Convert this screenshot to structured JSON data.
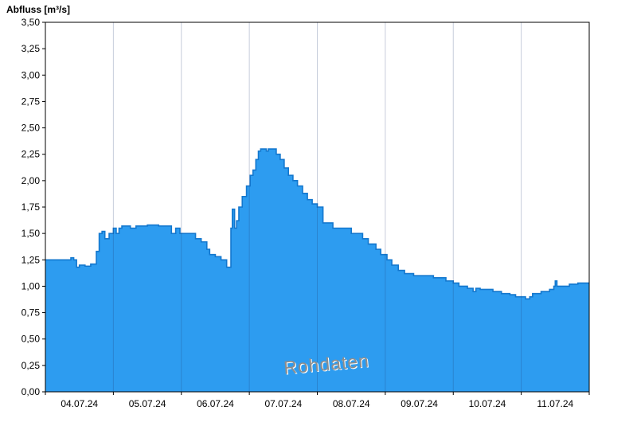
{
  "chart_data": {
    "type": "area",
    "title": "Abfluss [m³/s]",
    "watermark": "Rohdaten",
    "xlabel": "",
    "ylabel": "Abfluss [m³/s]",
    "ylim": [
      0,
      3.5
    ],
    "x_range_hours": [
      0,
      192
    ],
    "grid_hours": [
      24,
      48,
      72,
      96,
      120,
      144,
      168
    ],
    "x_labels": [
      "04.07.24",
      "05.07.24",
      "06.07.24",
      "07.07.24",
      "08.07.24",
      "09.07.24",
      "10.07.24",
      "11.07.24"
    ],
    "y_ticks": [
      "0,00",
      "0,25",
      "0,50",
      "0,75",
      "1,00",
      "1,25",
      "1,50",
      "1,75",
      "2,00",
      "2,25",
      "2,50",
      "2,75",
      "3,00",
      "3,25",
      "3,50"
    ],
    "grid_on": true,
    "legend": "none",
    "fill_color": "#2D9CF0",
    "line_color": "#1377CE",
    "grid_color": "rgba(30,60,110,0.25)",
    "axis_color": "#000000",
    "series": [
      {
        "name": "Rohdaten",
        "step_hours": [
          0,
          9,
          10,
          11,
          12,
          14,
          16,
          18,
          19,
          20,
          21,
          22.5,
          24,
          25,
          26,
          27,
          30,
          32,
          36,
          40,
          44.5,
          46,
          47.5,
          53,
          55,
          57,
          58,
          60,
          62,
          64,
          65.5,
          66,
          66.8,
          67.5,
          68.3,
          69.5,
          71,
          72.3,
          73.3,
          74.3,
          75.2,
          76,
          78,
          78.7,
          81.5,
          82.9,
          84.3,
          85.8,
          87.4,
          89,
          90.8,
          92.5,
          94.2,
          96,
          98,
          101.5,
          108,
          112,
          114,
          116.7,
          118.4,
          120.6,
          122.3,
          124.6,
          126.8,
          130,
          137,
          141.4,
          144,
          146,
          149,
          151,
          152,
          153.5,
          158,
          161,
          164,
          166,
          168,
          169.5,
          171,
          172,
          175,
          178,
          179.5,
          180,
          180.6,
          185,
          188
        ],
        "values": [
          1.25,
          1.27,
          1.25,
          1.18,
          1.2,
          1.19,
          1.21,
          1.33,
          1.5,
          1.52,
          1.45,
          1.5,
          1.55,
          1.5,
          1.55,
          1.57,
          1.55,
          1.57,
          1.58,
          1.57,
          1.5,
          1.55,
          1.5,
          1.45,
          1.42,
          1.35,
          1.3,
          1.28,
          1.25,
          1.18,
          1.55,
          1.73,
          1.55,
          1.62,
          1.75,
          1.85,
          1.95,
          2.05,
          2.1,
          2.2,
          2.28,
          2.3,
          2.28,
          2.3,
          2.25,
          2.2,
          2.12,
          2.05,
          2.0,
          1.95,
          1.88,
          1.82,
          1.78,
          1.75,
          1.6,
          1.55,
          1.5,
          1.45,
          1.4,
          1.35,
          1.3,
          1.25,
          1.2,
          1.15,
          1.12,
          1.1,
          1.08,
          1.05,
          1.03,
          1.0,
          0.98,
          0.95,
          0.98,
          0.97,
          0.95,
          0.93,
          0.92,
          0.9,
          0.9,
          0.88,
          0.9,
          0.93,
          0.95,
          0.97,
          1.0,
          1.05,
          1.0,
          1.02,
          1.03
        ]
      }
    ]
  }
}
